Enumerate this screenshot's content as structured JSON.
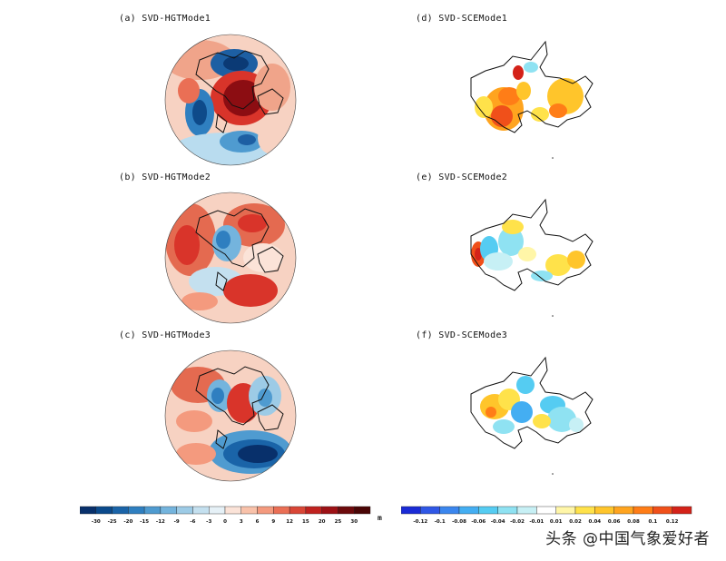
{
  "panels": {
    "a": "(a)  SVD-HGTMode1",
    "b": "(b)  SVD-HGTMode2",
    "c": "(c)  SVD-HGTMode3",
    "d": "(d)  SVD-SCEMode1",
    "e": "(e)  SVD-SCEMode2",
    "f": "(f)  SVD-SCEMode3"
  },
  "colorbar_left": {
    "ticks": [
      "-30",
      "-25",
      "-20",
      "-15",
      "-12",
      "-9",
      "-6",
      "-3",
      "0",
      "3",
      "6",
      "9",
      "12",
      "15",
      "20",
      "25",
      "30"
    ],
    "colors": [
      "#08306b",
      "#0b4a8c",
      "#1a64a8",
      "#2f7fc0",
      "#4f9bd0",
      "#74b4dd",
      "#9dcbe6",
      "#c4e0ef",
      "#e6f1f7",
      "#fbe3d8",
      "#f9c2aa",
      "#f49a7e",
      "#ea6f55",
      "#d94636",
      "#c0221f",
      "#9d1115",
      "#6d0a0c",
      "#4a0505"
    ],
    "unit": "m"
  },
  "colorbar_right": {
    "ticks": [
      "-0.12",
      "-0.1",
      "-0.08",
      "-0.06",
      "-0.04",
      "-0.02",
      "-0.01",
      "0.01",
      "0.02",
      "0.04",
      "0.06",
      "0.08",
      "0.1",
      "0.12"
    ],
    "colors": [
      "#1a2bd6",
      "#2f57e6",
      "#3b86ee",
      "#44aef2",
      "#55ccf2",
      "#8fe2f2",
      "#c7f0f5",
      "#ffffff",
      "#fff6a8",
      "#ffe24a",
      "#ffc52b",
      "#ffa41f",
      "#ff7d17",
      "#f0501a",
      "#d42219"
    ]
  },
  "watermark": "头条 @中国气象爱好者"
}
